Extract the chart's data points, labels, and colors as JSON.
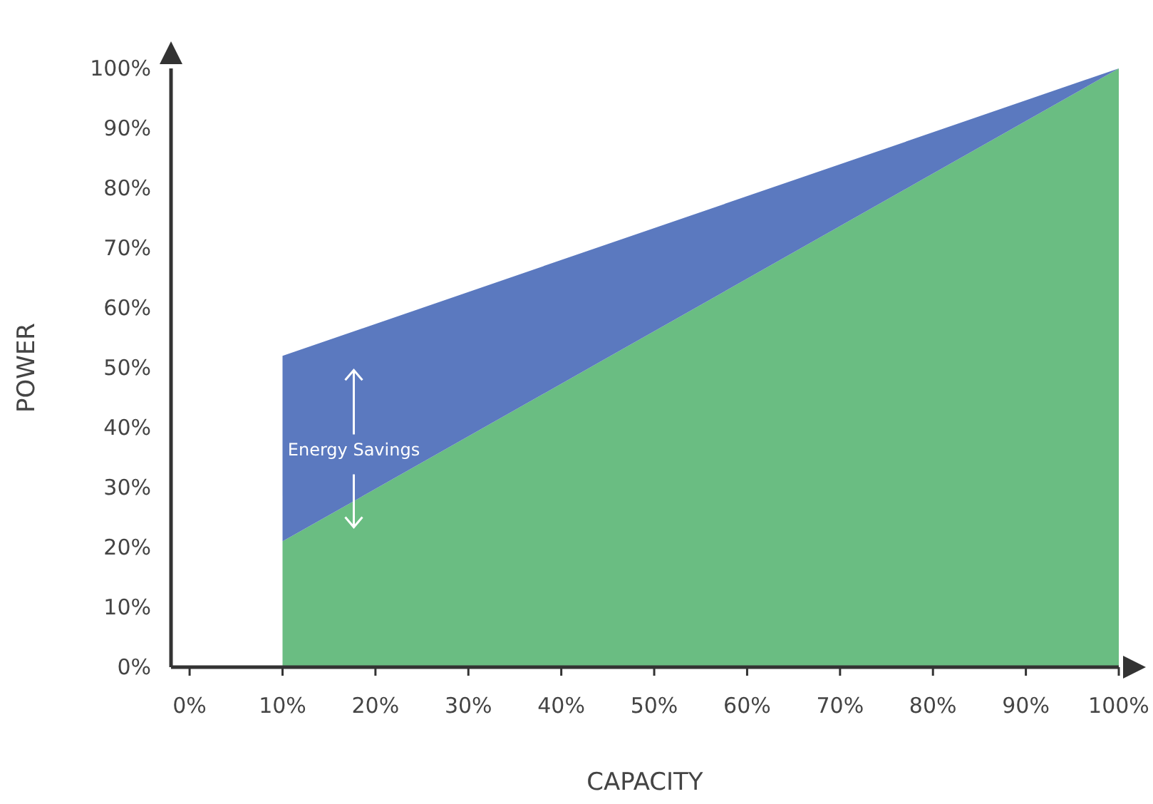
{
  "chart_data": {
    "type": "area",
    "xlabel": "CAPACITY",
    "ylabel": "POWER",
    "x": [
      10,
      100
    ],
    "series": [
      {
        "color": "#6abd82",
        "values": [
          21,
          100
        ]
      },
      {
        "color": "#5b79bf",
        "values": [
          31,
          0
        ]
      }
    ],
    "xlim": [
      -2,
      100
    ],
    "ylim": [
      0,
      100
    ],
    "xticks": [
      {
        "value": 0,
        "label": "0%"
      },
      {
        "value": 10,
        "label": "10%"
      },
      {
        "value": 20,
        "label": "20%"
      },
      {
        "value": 30,
        "label": "30%"
      },
      {
        "value": 40,
        "label": "40%"
      },
      {
        "value": 50,
        "label": "50%"
      },
      {
        "value": 60,
        "label": "60%"
      },
      {
        "value": 70,
        "label": "70%"
      },
      {
        "value": 80,
        "label": "80%"
      },
      {
        "value": 90,
        "label": "90%"
      },
      {
        "value": 100,
        "label": "100%"
      }
    ],
    "yticks": [
      {
        "value": 0,
        "label": "0%"
      },
      {
        "value": 10,
        "label": "10%"
      },
      {
        "value": 20,
        "label": "20%"
      },
      {
        "value": 30,
        "label": "30%"
      },
      {
        "value": 40,
        "label": "40%"
      },
      {
        "value": 50,
        "label": "50%"
      },
      {
        "value": 60,
        "label": "60%"
      },
      {
        "value": 70,
        "label": "70%"
      },
      {
        "value": 80,
        "label": "80%"
      },
      {
        "value": 90,
        "label": "90%"
      },
      {
        "value": 100,
        "label": "100%"
      }
    ],
    "annotations": [
      "Energy Savings"
    ],
    "grid": false,
    "stacked": true
  }
}
